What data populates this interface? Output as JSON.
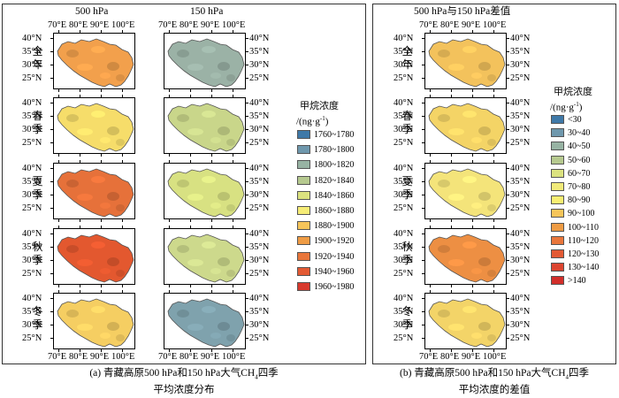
{
  "panel_a": {
    "col1_title": "500 hPa",
    "col2_title": "150 hPa",
    "caption_line1": "(a) 青藏高原500 hPa和150 hPa大气CH",
    "caption_sub": "4",
    "caption_line1_end": "四季",
    "caption_line2": "平均浓度分布",
    "legend_title1": "甲烷浓度",
    "legend_title2": "/(ng·g",
    "legend_title2_sup": "-1",
    "legend_title2_end": ")",
    "legend": [
      {
        "label": "1760~1780",
        "color": "#3f79a8"
      },
      {
        "label": "1780~1800",
        "color": "#6f98ad"
      },
      {
        "label": "1800~1820",
        "color": "#97b3a3"
      },
      {
        "label": "1820~1840",
        "color": "#b6c98f"
      },
      {
        "label": "1840~1860",
        "color": "#dbe27f"
      },
      {
        "label": "1860~1880",
        "color": "#f6ec76"
      },
      {
        "label": "1880~1900",
        "color": "#f6c55a"
      },
      {
        "label": "1900~1920",
        "color": "#ef9c45"
      },
      {
        "label": "1920~1940",
        "color": "#e9763b"
      },
      {
        "label": "1940~1960",
        "color": "#e35a34"
      },
      {
        "label": "1960~1980",
        "color": "#d8392d"
      }
    ]
  },
  "panel_b": {
    "col_title": "500 hPa与150 hPa差值",
    "caption_line1": "(b) 青藏高原500 hPa和150 hPa大气CH",
    "caption_sub": "4",
    "caption_line1_end": "四季",
    "caption_line2": "平均浓度的差值",
    "legend_title1": "甲烷浓度",
    "legend_title2": "/(ng·g",
    "legend_title2_sup": "-1",
    "legend_title2_end": ")",
    "legend": [
      {
        "label": "<30",
        "color": "#3f79a8"
      },
      {
        "label": "30~40",
        "color": "#6f98ad"
      },
      {
        "label": "40~50",
        "color": "#97b3a3"
      },
      {
        "label": "50~60",
        "color": "#b6c98f"
      },
      {
        "label": "60~70",
        "color": "#dbe27f"
      },
      {
        "label": "70~80",
        "color": "#f1ea7a"
      },
      {
        "label": "80~90",
        "color": "#f8ee72"
      },
      {
        "label": "90~100",
        "color": "#f6c55a"
      },
      {
        "label": "100~110",
        "color": "#ef9c45"
      },
      {
        "label": "110~120",
        "color": "#e9763b"
      },
      {
        "label": "120~130",
        "color": "#e35a34"
      },
      {
        "label": "130~140",
        "color": "#dc4530"
      },
      {
        "label": ">140",
        "color": "#d22e2a"
      }
    ]
  },
  "seasons": [
    {
      "label": "全年",
      "a500": "#f2a04c",
      "a150": "#9bb2a6",
      "diff": "#f3c25c"
    },
    {
      "label": "春季",
      "a500": "#f6dd6a",
      "a150": "#c9d68a",
      "diff": "#f4d466"
    },
    {
      "label": "夏季",
      "a500": "#e6713a",
      "a150": "#d8e182",
      "diff": "#f4e47a"
    },
    {
      "label": "秋季",
      "a500": "#e3582f",
      "a150": "#cdd98c",
      "diff": "#ed8f43"
    },
    {
      "label": "冬季",
      "a500": "#f5ce62",
      "a150": "#7fa2ad",
      "diff": "#f3d468"
    }
  ],
  "axes": {
    "lat_labels": [
      "40°N",
      "35°N",
      "30°N",
      "25°N"
    ],
    "lon_labels": [
      "70°E",
      "80°E",
      "90°E",
      "100°E"
    ]
  }
}
